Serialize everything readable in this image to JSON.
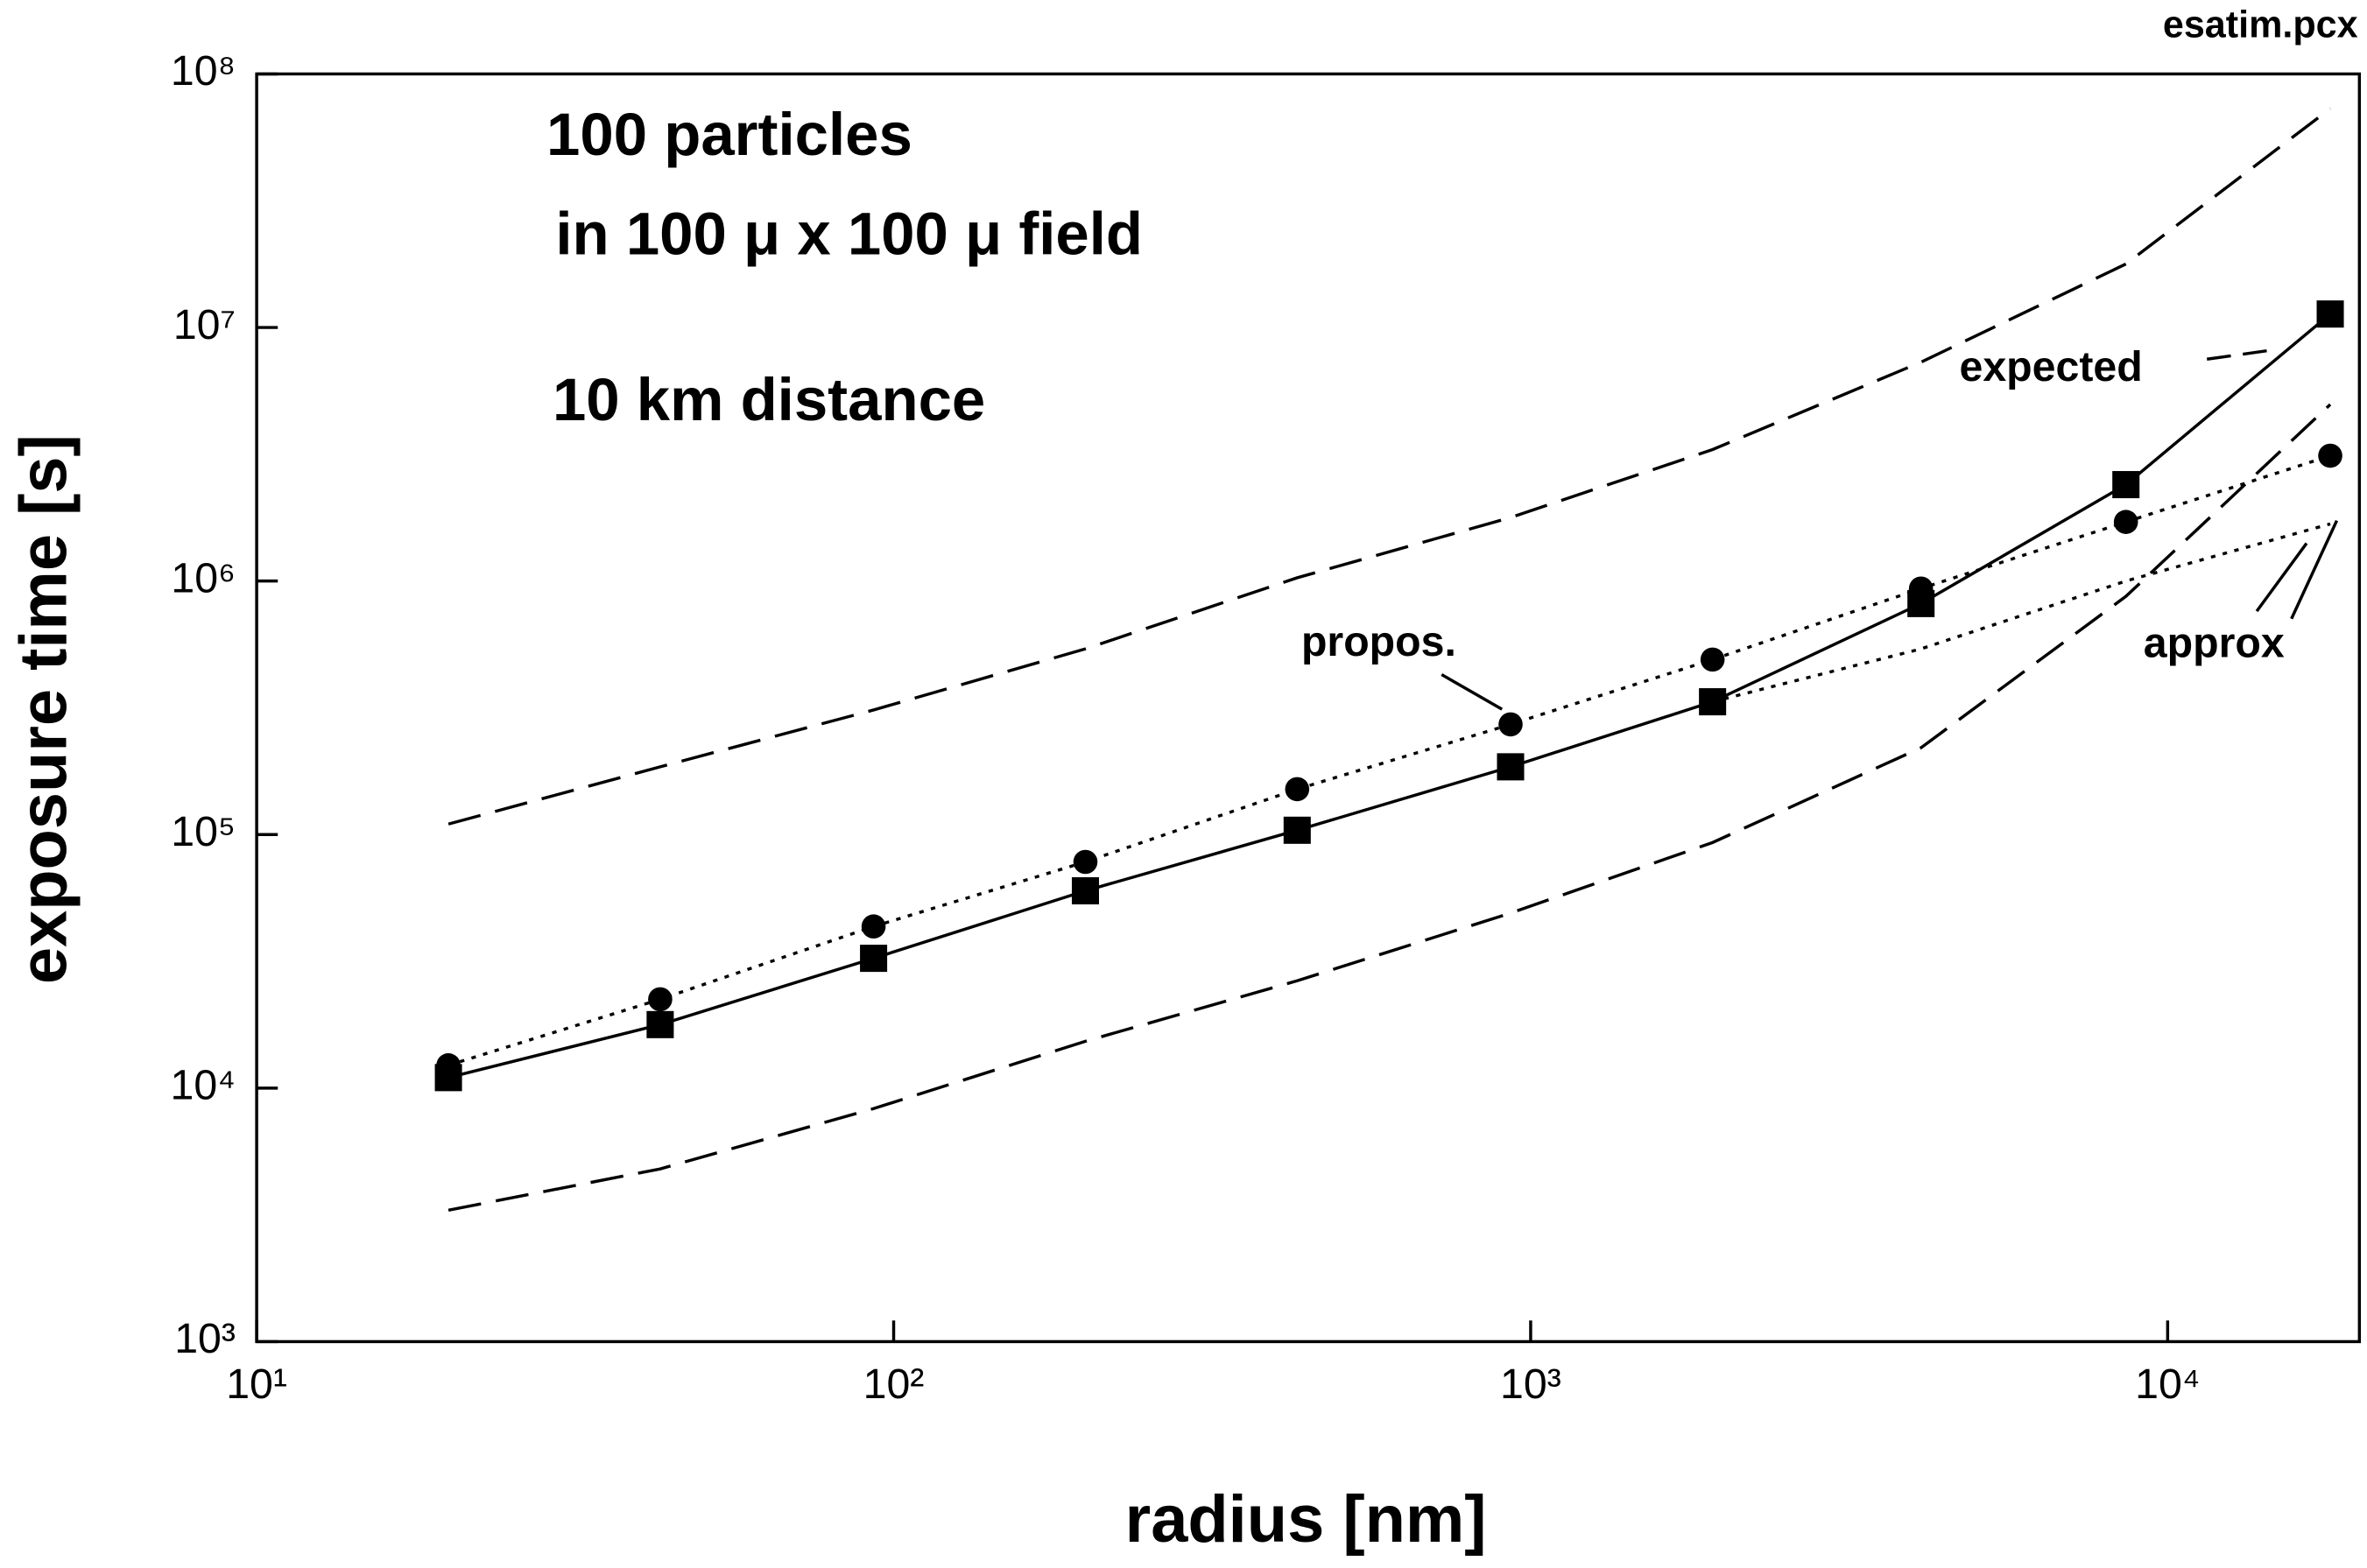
{
  "chart_data": {
    "type": "line",
    "title": "esatim.pcx",
    "annotations": [
      "100 particles",
      "in 100 μ x 100 μ field",
      "10 km distance"
    ],
    "xlabel": "radius [nm]",
    "ylabel": "exposure time [s]",
    "x": [
      20,
      43,
      93,
      200,
      430,
      930,
      1930,
      4100,
      8600,
      18000
    ],
    "series": [
      {
        "color": "#000000",
        "style": "dashed",
        "values": [
          110000,
          185000,
          310000,
          540000,
          1030000,
          1780000,
          3300000,
          7300000,
          17800000,
          73000000
        ]
      },
      {
        "name": "expected",
        "color": "#000000",
        "style": "solid",
        "marker": "square",
        "values": [
          11000,
          17800,
          32500,
          60000,
          104000,
          185000,
          334000,
          815000,
          2400000,
          11300000
        ]
      },
      {
        "name": "propos.",
        "color": "#000000",
        "style": "dotted",
        "marker": "circle",
        "values": [
          12300,
          22400,
          43400,
          78000,
          151000,
          272000,
          490000,
          934000,
          1710000,
          3120000
        ]
      },
      {
        "name": "approx",
        "color": "#000000",
        "style": "dotted",
        "values": [
          null,
          null,
          null,
          null,
          null,
          null,
          334000,
          540000,
          1000000,
          1680000
        ]
      },
      {
        "color": "#000000",
        "style": "dashed",
        "values": [
          3300,
          4800,
          8300,
          15300,
          26500,
          49000,
          93000,
          220000,
          870000,
          4970000
        ]
      }
    ],
    "xlog": true,
    "ylog": true,
    "xlim": [
      10,
      20000
    ],
    "ylim": [
      1000,
      100000000
    ],
    "xticks": [
      {
        "value": 10,
        "label": "10¹"
      },
      {
        "value": 100,
        "label": "10²"
      },
      {
        "value": 1000,
        "label": "10³"
      },
      {
        "value": 10000,
        "label": "10⁴"
      }
    ],
    "yticks": [
      {
        "value": 1000,
        "label": "10³"
      },
      {
        "value": 10000,
        "label": "10⁴"
      },
      {
        "value": 100000,
        "label": "10⁵"
      },
      {
        "value": 1000000,
        "label": "10⁶"
      },
      {
        "value": 10000000,
        "label": "10⁷"
      },
      {
        "value": 100000000,
        "label": "10⁸"
      }
    ]
  }
}
